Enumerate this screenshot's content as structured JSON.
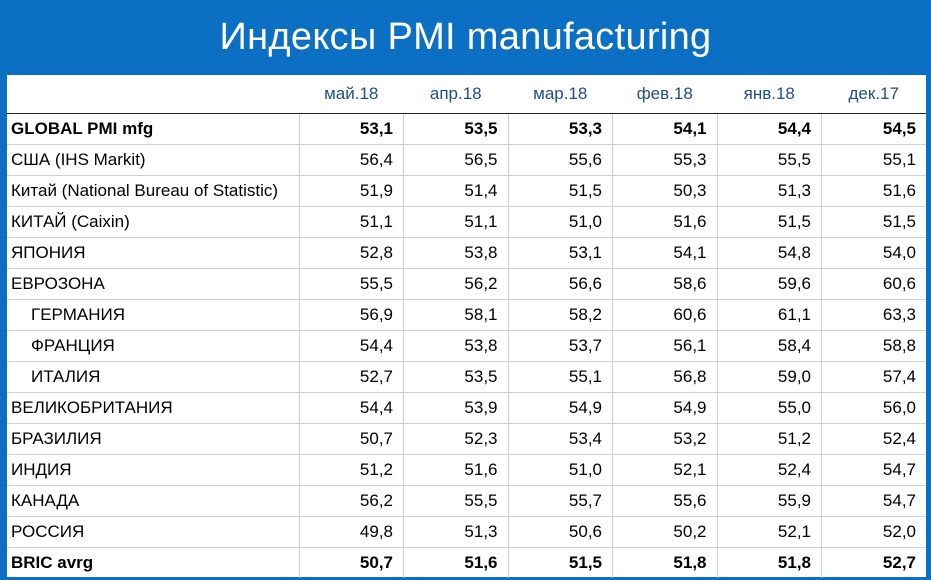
{
  "title": "Индексы PMI manufacturing",
  "chart_data": {
    "type": "table",
    "title": "Индексы PMI manufacturing",
    "columns": [
      "май.18",
      "апр.18",
      "мар.18",
      "фев.18",
      "янв.18",
      "дек.17"
    ],
    "rows": [
      {
        "label": "GLOBAL PMI mfg",
        "bold": true,
        "indent": false,
        "values": [
          "53,1",
          "53,5",
          "53,3",
          "54,1",
          "54,4",
          "54,5"
        ]
      },
      {
        "label": "США (IHS Markit)",
        "bold": false,
        "indent": false,
        "values": [
          "56,4",
          "56,5",
          "55,6",
          "55,3",
          "55,5",
          "55,1"
        ]
      },
      {
        "label": "Китай (National Bureau of Statistic)",
        "bold": false,
        "indent": false,
        "values": [
          "51,9",
          "51,4",
          "51,5",
          "50,3",
          "51,3",
          "51,6"
        ]
      },
      {
        "label": "КИТАЙ (Caixin)",
        "bold": false,
        "indent": false,
        "values": [
          "51,1",
          "51,1",
          "51,0",
          "51,6",
          "51,5",
          "51,5"
        ]
      },
      {
        "label": "ЯПОНИЯ",
        "bold": false,
        "indent": false,
        "values": [
          "52,8",
          "53,8",
          "53,1",
          "54,1",
          "54,8",
          "54,0"
        ]
      },
      {
        "label": "ЕВРОЗОНА",
        "bold": false,
        "indent": false,
        "values": [
          "55,5",
          "56,2",
          "56,6",
          "58,6",
          "59,6",
          "60,6"
        ]
      },
      {
        "label": "ГЕРМАНИЯ",
        "bold": false,
        "indent": true,
        "values": [
          "56,9",
          "58,1",
          "58,2",
          "60,6",
          "61,1",
          "63,3"
        ]
      },
      {
        "label": "ФРАНЦИЯ",
        "bold": false,
        "indent": true,
        "values": [
          "54,4",
          "53,8",
          "53,7",
          "56,1",
          "58,4",
          "58,8"
        ]
      },
      {
        "label": "ИТАЛИЯ",
        "bold": false,
        "indent": true,
        "values": [
          "52,7",
          "53,5",
          "55,1",
          "56,8",
          "59,0",
          "57,4"
        ]
      },
      {
        "label": "ВЕЛИКОБРИТАНИЯ",
        "bold": false,
        "indent": false,
        "values": [
          "54,4",
          "53,9",
          "54,9",
          "54,9",
          "55,0",
          "56,0"
        ]
      },
      {
        "label": "БРАЗИЛИЯ",
        "bold": false,
        "indent": false,
        "values": [
          "50,7",
          "52,3",
          "53,4",
          "53,2",
          "51,2",
          "52,4"
        ]
      },
      {
        "label": "ИНДИЯ",
        "bold": false,
        "indent": false,
        "values": [
          "51,2",
          "51,6",
          "51,0",
          "52,1",
          "52,4",
          "54,7"
        ]
      },
      {
        "label": "КАНАДА",
        "bold": false,
        "indent": false,
        "values": [
          "56,2",
          "55,5",
          "55,7",
          "55,6",
          "55,9",
          "54,7"
        ]
      },
      {
        "label": "РОССИЯ",
        "bold": false,
        "indent": false,
        "values": [
          "49,8",
          "51,3",
          "50,6",
          "50,2",
          "52,1",
          "52,0"
        ]
      },
      {
        "label": "BRIC avrg",
        "bold": true,
        "indent": false,
        "values": [
          "50,7",
          "51,6",
          "51,5",
          "51,8",
          "51,8",
          "52,7"
        ]
      }
    ]
  },
  "colors": {
    "background": "#0b6fc4",
    "header_text": "#1f4e86",
    "title_text": "#ffffff"
  }
}
